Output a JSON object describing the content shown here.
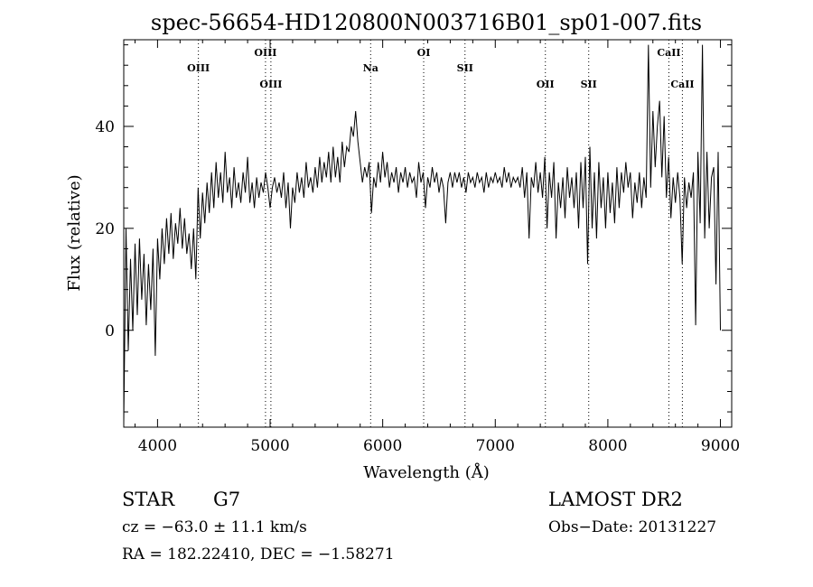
{
  "chart_data": {
    "type": "line",
    "title": "spec-56654-HD120800N003716B01_sp01-007.fits",
    "xlabel": "Wavelength (Å)",
    "ylabel": "Flux (relative)",
    "xlim": [
      3700,
      9100
    ],
    "ylim": [
      -19,
      57
    ],
    "x_ticks": [
      4000,
      5000,
      6000,
      7000,
      8000,
      9000
    ],
    "y_ticks": [
      0,
      20,
      40
    ],
    "grid": false,
    "series": [
      {
        "color": "#000000",
        "points": [
          [
            3700,
            -18
          ],
          [
            3720,
            20
          ],
          [
            3740,
            -4
          ],
          [
            3760,
            14
          ],
          [
            3780,
            0
          ],
          [
            3800,
            17
          ],
          [
            3820,
            3
          ],
          [
            3840,
            18
          ],
          [
            3860,
            6
          ],
          [
            3880,
            15
          ],
          [
            3900,
            1
          ],
          [
            3920,
            13
          ],
          [
            3940,
            4
          ],
          [
            3960,
            16
          ],
          [
            3980,
            -5
          ],
          [
            4000,
            18
          ],
          [
            4020,
            10
          ],
          [
            4040,
            20
          ],
          [
            4060,
            13
          ],
          [
            4080,
            22
          ],
          [
            4100,
            15
          ],
          [
            4120,
            23
          ],
          [
            4140,
            14
          ],
          [
            4160,
            21
          ],
          [
            4180,
            17
          ],
          [
            4200,
            24
          ],
          [
            4220,
            16
          ],
          [
            4240,
            22
          ],
          [
            4260,
            15
          ],
          [
            4280,
            19
          ],
          [
            4300,
            12
          ],
          [
            4320,
            20
          ],
          [
            4340,
            10
          ],
          [
            4360,
            28
          ],
          [
            4380,
            18
          ],
          [
            4400,
            27
          ],
          [
            4420,
            21
          ],
          [
            4440,
            29
          ],
          [
            4460,
            23
          ],
          [
            4480,
            31
          ],
          [
            4500,
            24
          ],
          [
            4520,
            33
          ],
          [
            4540,
            26
          ],
          [
            4560,
            31
          ],
          [
            4580,
            25
          ],
          [
            4600,
            35
          ],
          [
            4620,
            27
          ],
          [
            4640,
            30
          ],
          [
            4660,
            24
          ],
          [
            4680,
            32
          ],
          [
            4700,
            26
          ],
          [
            4720,
            29
          ],
          [
            4740,
            25
          ],
          [
            4760,
            31
          ],
          [
            4780,
            27
          ],
          [
            4800,
            34
          ],
          [
            4820,
            25
          ],
          [
            4840,
            29
          ],
          [
            4860,
            24
          ],
          [
            4880,
            30
          ],
          [
            4900,
            26
          ],
          [
            4920,
            29
          ],
          [
            4940,
            27
          ],
          [
            4960,
            31
          ],
          [
            4980,
            28
          ],
          [
            5000,
            24
          ],
          [
            5020,
            28
          ],
          [
            5040,
            30
          ],
          [
            5060,
            27
          ],
          [
            5080,
            29
          ],
          [
            5100,
            26
          ],
          [
            5120,
            31
          ],
          [
            5140,
            24
          ],
          [
            5160,
            29
          ],
          [
            5180,
            20
          ],
          [
            5200,
            28
          ],
          [
            5220,
            25
          ],
          [
            5240,
            31
          ],
          [
            5260,
            27
          ],
          [
            5280,
            30
          ],
          [
            5300,
            26
          ],
          [
            5320,
            33
          ],
          [
            5340,
            28
          ],
          [
            5360,
            30
          ],
          [
            5380,
            27
          ],
          [
            5400,
            32
          ],
          [
            5420,
            28
          ],
          [
            5440,
            34
          ],
          [
            5460,
            29
          ],
          [
            5480,
            33
          ],
          [
            5500,
            30
          ],
          [
            5520,
            35
          ],
          [
            5540,
            29
          ],
          [
            5560,
            36
          ],
          [
            5580,
            30
          ],
          [
            5600,
            34
          ],
          [
            5620,
            29
          ],
          [
            5640,
            37
          ],
          [
            5660,
            32
          ],
          [
            5680,
            36
          ],
          [
            5700,
            35
          ],
          [
            5720,
            40
          ],
          [
            5740,
            38
          ],
          [
            5760,
            43
          ],
          [
            5780,
            37
          ],
          [
            5800,
            33
          ],
          [
            5820,
            29
          ],
          [
            5840,
            32
          ],
          [
            5860,
            30
          ],
          [
            5880,
            33
          ],
          [
            5900,
            23
          ],
          [
            5920,
            30
          ],
          [
            5940,
            28
          ],
          [
            5960,
            33
          ],
          [
            5980,
            29
          ],
          [
            6000,
            35
          ],
          [
            6020,
            30
          ],
          [
            6040,
            33
          ],
          [
            6060,
            28
          ],
          [
            6080,
            31
          ],
          [
            6100,
            29
          ],
          [
            6120,
            32
          ],
          [
            6140,
            27
          ],
          [
            6160,
            31
          ],
          [
            6180,
            29
          ],
          [
            6200,
            32
          ],
          [
            6220,
            28
          ],
          [
            6240,
            31
          ],
          [
            6260,
            29
          ],
          [
            6280,
            30
          ],
          [
            6300,
            26
          ],
          [
            6320,
            33
          ],
          [
            6340,
            29
          ],
          [
            6360,
            31
          ],
          [
            6380,
            24
          ],
          [
            6400,
            30
          ],
          [
            6420,
            28
          ],
          [
            6440,
            32
          ],
          [
            6460,
            29
          ],
          [
            6480,
            31
          ],
          [
            6500,
            27
          ],
          [
            6520,
            30
          ],
          [
            6540,
            28
          ],
          [
            6560,
            21
          ],
          [
            6580,
            29
          ],
          [
            6600,
            31
          ],
          [
            6620,
            28
          ],
          [
            6640,
            31
          ],
          [
            6660,
            29
          ],
          [
            6680,
            31
          ],
          [
            6700,
            28
          ],
          [
            6720,
            30
          ],
          [
            6740,
            27
          ],
          [
            6760,
            31
          ],
          [
            6780,
            29
          ],
          [
            6800,
            30
          ],
          [
            6820,
            28
          ],
          [
            6840,
            31
          ],
          [
            6860,
            29
          ],
          [
            6880,
            30
          ],
          [
            6900,
            27
          ],
          [
            6920,
            31
          ],
          [
            6940,
            28
          ],
          [
            6960,
            30
          ],
          [
            6980,
            29
          ],
          [
            7000,
            31
          ],
          [
            7020,
            29
          ],
          [
            7040,
            30
          ],
          [
            7060,
            28
          ],
          [
            7080,
            32
          ],
          [
            7100,
            29
          ],
          [
            7120,
            31
          ],
          [
            7140,
            28
          ],
          [
            7160,
            30
          ],
          [
            7180,
            29
          ],
          [
            7200,
            30
          ],
          [
            7220,
            28
          ],
          [
            7240,
            32
          ],
          [
            7260,
            26
          ],
          [
            7280,
            31
          ],
          [
            7300,
            18
          ],
          [
            7320,
            30
          ],
          [
            7340,
            28
          ],
          [
            7360,
            33
          ],
          [
            7380,
            27
          ],
          [
            7400,
            31
          ],
          [
            7420,
            26
          ],
          [
            7440,
            34
          ],
          [
            7460,
            20
          ],
          [
            7480,
            31
          ],
          [
            7500,
            26
          ],
          [
            7520,
            33
          ],
          [
            7540,
            18
          ],
          [
            7560,
            29
          ],
          [
            7580,
            24
          ],
          [
            7600,
            30
          ],
          [
            7620,
            22
          ],
          [
            7640,
            32
          ],
          [
            7660,
            26
          ],
          [
            7680,
            30
          ],
          [
            7700,
            24
          ],
          [
            7720,
            31
          ],
          [
            7740,
            20
          ],
          [
            7760,
            33
          ],
          [
            7780,
            24
          ],
          [
            7800,
            34
          ],
          [
            7820,
            13
          ],
          [
            7840,
            36
          ],
          [
            7860,
            20
          ],
          [
            7880,
            31
          ],
          [
            7900,
            18
          ],
          [
            7920,
            33
          ],
          [
            7940,
            24
          ],
          [
            7960,
            30
          ],
          [
            7980,
            20
          ],
          [
            8000,
            31
          ],
          [
            8020,
            23
          ],
          [
            8040,
            29
          ],
          [
            8060,
            21
          ],
          [
            8080,
            32
          ],
          [
            8100,
            24
          ],
          [
            8120,
            31
          ],
          [
            8140,
            27
          ],
          [
            8160,
            33
          ],
          [
            8180,
            28
          ],
          [
            8200,
            31
          ],
          [
            8220,
            22
          ],
          [
            8240,
            29
          ],
          [
            8260,
            25
          ],
          [
            8280,
            31
          ],
          [
            8300,
            24
          ],
          [
            8320,
            30
          ],
          [
            8340,
            26
          ],
          [
            8360,
            56
          ],
          [
            8380,
            28
          ],
          [
            8400,
            43
          ],
          [
            8420,
            32
          ],
          [
            8440,
            40
          ],
          [
            8460,
            45
          ],
          [
            8480,
            30
          ],
          [
            8500,
            42
          ],
          [
            8520,
            26
          ],
          [
            8540,
            34
          ],
          [
            8560,
            22
          ],
          [
            8580,
            30
          ],
          [
            8600,
            25
          ],
          [
            8620,
            31
          ],
          [
            8640,
            26
          ],
          [
            8660,
            13
          ],
          [
            8680,
            30
          ],
          [
            8700,
            24
          ],
          [
            8720,
            29
          ],
          [
            8740,
            26
          ],
          [
            8760,
            31
          ],
          [
            8780,
            1
          ],
          [
            8800,
            35
          ],
          [
            8820,
            21
          ],
          [
            8840,
            56
          ],
          [
            8860,
            18
          ],
          [
            8880,
            35
          ],
          [
            8900,
            20
          ],
          [
            8920,
            30
          ],
          [
            8940,
            32
          ],
          [
            8960,
            9
          ],
          [
            8980,
            35
          ],
          [
            9000,
            0
          ]
        ]
      }
    ],
    "annotations": [
      {
        "label": "OIII",
        "x": 4363,
        "row": 2
      },
      {
        "label": "OIII",
        "x": 4959,
        "row": 1
      },
      {
        "label": "OIII",
        "x": 5007,
        "row": 3
      },
      {
        "label": "Na",
        "x": 5893,
        "row": 2
      },
      {
        "label": "OI",
        "x": 6364,
        "row": 1
      },
      {
        "label": "SII",
        "x": 6731,
        "row": 2
      },
      {
        "label": "OII",
        "x": 7445,
        "row": 3
      },
      {
        "label": "SII",
        "x": 7830,
        "row": 3
      },
      {
        "label": "CaII",
        "x": 8542,
        "row": 1
      },
      {
        "label": "CaII",
        "x": 8662,
        "row": 3
      }
    ]
  },
  "info": {
    "object_class": "STAR",
    "subclass": "G7",
    "survey": "LAMOST DR2",
    "cz": "cz = −63.0 ± 11.1 km/s",
    "obs_date": "Obs−Date: 20131227",
    "coords": "RA = 182.22410, DEC =  −1.58271"
  }
}
